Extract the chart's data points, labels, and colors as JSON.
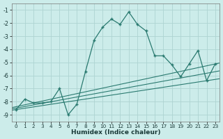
{
  "xlabel": "Humidex (Indice chaleur)",
  "xlim_min": -0.5,
  "xlim_max": 23.5,
  "ylim_min": -9.5,
  "ylim_max": -0.5,
  "xticks": [
    0,
    1,
    2,
    3,
    4,
    5,
    6,
    7,
    8,
    9,
    10,
    11,
    12,
    13,
    14,
    15,
    16,
    17,
    18,
    19,
    20,
    21,
    22,
    23
  ],
  "yticks": [
    -9,
    -8,
    -7,
    -6,
    -5,
    -4,
    -3,
    -2,
    -1
  ],
  "bg_color": "#ccecea",
  "grid_color": "#aed4d2",
  "line_color": "#2a7a70",
  "curve_x": [
    0,
    1,
    2,
    3,
    4,
    5,
    6,
    7,
    8,
    9,
    10,
    11,
    12,
    13,
    14,
    15,
    16,
    17,
    18,
    19,
    20,
    21,
    22,
    23
  ],
  "curve_y": [
    -8.6,
    -7.8,
    -8.1,
    -8.1,
    -8.0,
    -7.0,
    -9.0,
    -8.2,
    -5.7,
    -3.3,
    -2.3,
    -1.7,
    -2.1,
    -1.15,
    -2.1,
    -2.6,
    -4.5,
    -4.5,
    -5.2,
    -6.1,
    -5.1,
    -4.1,
    -6.4,
    -5.1
  ],
  "trend1_x0": -0.5,
  "trend1_y0": -8.45,
  "trend1_x1": 23.5,
  "trend1_y1": -5.05,
  "trend2_x0": -0.5,
  "trend2_y0": -8.55,
  "trend2_x1": 23.5,
  "trend2_y1": -5.65,
  "trend3_x0": -0.5,
  "trend3_y0": -8.65,
  "trend3_x1": 23.5,
  "trend3_y1": -6.25
}
